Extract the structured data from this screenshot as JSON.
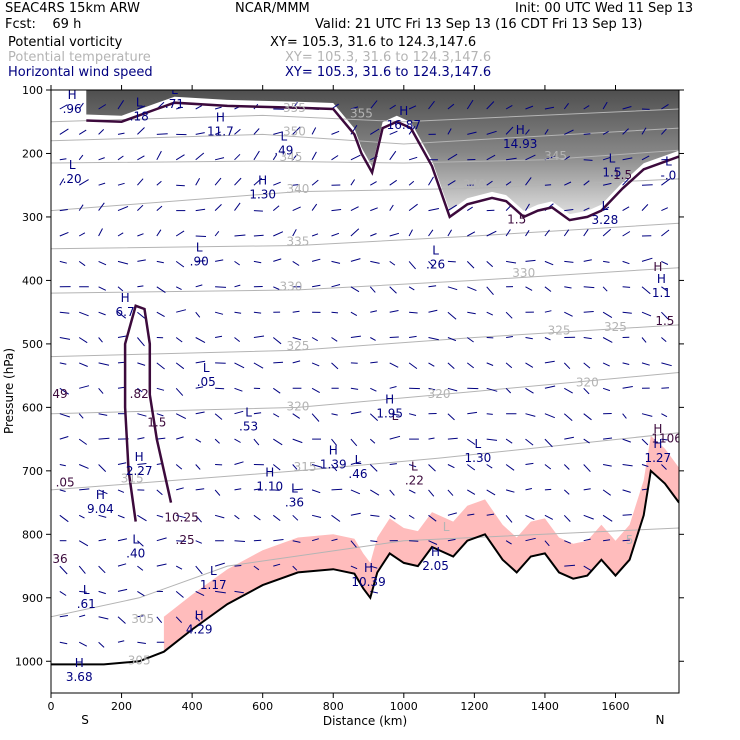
{
  "header": {
    "model": "SEAC4RS 15km ARW",
    "center": "NCAR/MMM",
    "init": "Init: 00 UTC Wed 11 Sep 13",
    "fcst": "Fcst:    69 h",
    "valid": "Valid: 21 UTC Fri 13 Sep 13 (16 CDT Fri 13 Sep 13)",
    "fields": [
      {
        "name": "Potential vorticity",
        "xy": "XY= 105.3, 31.6 to 124.3,147.6",
        "color": "#000000"
      },
      {
        "name": "Potential temperature",
        "xy": "XY= 105.3, 31.6 to 124.3,147.6",
        "color": "#b4b4b4"
      },
      {
        "name": "Horizontal wind speed",
        "xy": "XY= 105.3, 31.6 to 124.3,147.6",
        "color": "#000080"
      }
    ]
  },
  "chart_data": {
    "type": "cross-section",
    "xlabel": "Distance (km)",
    "ylabel": "Pressure (hPa)",
    "xlim": [
      0,
      1780
    ],
    "ylim": [
      1050,
      100
    ],
    "x_ticks": [
      0,
      200,
      400,
      600,
      800,
      1000,
      1200,
      1400,
      1600
    ],
    "y_ticks": [
      100,
      200,
      300,
      400,
      500,
      600,
      700,
      800,
      900,
      1000
    ],
    "endpoint_labels": {
      "left": "S",
      "right": "N"
    },
    "colors": {
      "terrain": "#000000",
      "pv_contour": "#3c0a3c",
      "theta_contour": "#b4b4b4",
      "wind_vectors": "#000080",
      "shading_pink": "#ffbcbc"
    },
    "terrain_surface": [
      {
        "x": 0,
        "p": 1005
      },
      {
        "x": 150,
        "p": 1005
      },
      {
        "x": 250,
        "p": 1000
      },
      {
        "x": 320,
        "p": 985
      },
      {
        "x": 400,
        "p": 950
      },
      {
        "x": 500,
        "p": 910
      },
      {
        "x": 600,
        "p": 880
      },
      {
        "x": 700,
        "p": 860
      },
      {
        "x": 800,
        "p": 855
      },
      {
        "x": 860,
        "p": 862
      },
      {
        "x": 885,
        "p": 885
      },
      {
        "x": 905,
        "p": 900
      },
      {
        "x": 925,
        "p": 860
      },
      {
        "x": 960,
        "p": 830
      },
      {
        "x": 1000,
        "p": 845
      },
      {
        "x": 1040,
        "p": 850
      },
      {
        "x": 1080,
        "p": 820
      },
      {
        "x": 1140,
        "p": 835
      },
      {
        "x": 1180,
        "p": 810
      },
      {
        "x": 1230,
        "p": 800
      },
      {
        "x": 1280,
        "p": 840
      },
      {
        "x": 1320,
        "p": 860
      },
      {
        "x": 1360,
        "p": 835
      },
      {
        "x": 1400,
        "p": 830
      },
      {
        "x": 1440,
        "p": 860
      },
      {
        "x": 1480,
        "p": 870
      },
      {
        "x": 1520,
        "p": 865
      },
      {
        "x": 1560,
        "p": 840
      },
      {
        "x": 1600,
        "p": 865
      },
      {
        "x": 1640,
        "p": 840
      },
      {
        "x": 1680,
        "p": 770
      },
      {
        "x": 1700,
        "p": 700
      },
      {
        "x": 1740,
        "p": 720
      },
      {
        "x": 1780,
        "p": 750
      }
    ],
    "pv_contour_upper": [
      {
        "x": 100,
        "p": 148
      },
      {
        "x": 200,
        "p": 150
      },
      {
        "x": 300,
        "p": 130
      },
      {
        "x": 350,
        "p": 120
      },
      {
        "x": 500,
        "p": 125
      },
      {
        "x": 700,
        "p": 128
      },
      {
        "x": 800,
        "p": 130
      },
      {
        "x": 860,
        "p": 170
      },
      {
        "x": 880,
        "p": 200
      },
      {
        "x": 910,
        "p": 230
      },
      {
        "x": 940,
        "p": 160
      },
      {
        "x": 980,
        "p": 150
      },
      {
        "x": 1020,
        "p": 160
      },
      {
        "x": 1080,
        "p": 220
      },
      {
        "x": 1130,
        "p": 300
      },
      {
        "x": 1180,
        "p": 280
      },
      {
        "x": 1250,
        "p": 270
      },
      {
        "x": 1290,
        "p": 275
      },
      {
        "x": 1340,
        "p": 300
      },
      {
        "x": 1380,
        "p": 290
      },
      {
        "x": 1420,
        "p": 285
      },
      {
        "x": 1470,
        "p": 305
      },
      {
        "x": 1520,
        "p": 300
      },
      {
        "x": 1560,
        "p": 290
      },
      {
        "x": 1620,
        "p": 255
      },
      {
        "x": 1680,
        "p": 225
      },
      {
        "x": 1780,
        "p": 205
      }
    ],
    "pv_contour_column": [
      {
        "x": 240,
        "p": 780
      },
      {
        "x": 220,
        "p": 700
      },
      {
        "x": 210,
        "p": 600
      },
      {
        "x": 210,
        "p": 500
      },
      {
        "x": 240,
        "p": 440
      },
      {
        "x": 265,
        "p": 445
      },
      {
        "x": 280,
        "p": 500
      },
      {
        "x": 280,
        "p": 580
      },
      {
        "x": 300,
        "p": 650
      },
      {
        "x": 320,
        "p": 700
      },
      {
        "x": 340,
        "p": 750
      }
    ],
    "theta_contours": [
      {
        "label": "355",
        "points": [
          {
            "x": 0,
            "p": 150
          },
          {
            "x": 600,
            "p": 140
          },
          {
            "x": 1000,
            "p": 150
          },
          {
            "x": 1780,
            "p": 130
          }
        ]
      },
      {
        "label": "350",
        "points": [
          {
            "x": 0,
            "p": 180
          },
          {
            "x": 600,
            "p": 170
          },
          {
            "x": 1000,
            "p": 185
          },
          {
            "x": 1780,
            "p": 160
          }
        ]
      },
      {
        "label": "345",
        "points": [
          {
            "x": 0,
            "p": 215
          },
          {
            "x": 600,
            "p": 212
          },
          {
            "x": 1000,
            "p": 215
          },
          {
            "x": 1400,
            "p": 210
          },
          {
            "x": 1780,
            "p": 195
          }
        ]
      },
      {
        "label": "340",
        "points": [
          {
            "x": 0,
            "p": 290
          },
          {
            "x": 700,
            "p": 260
          },
          {
            "x": 1200,
            "p": 255
          },
          {
            "x": 1780,
            "p": 240
          }
        ]
      },
      {
        "label": "335",
        "points": [
          {
            "x": 0,
            "p": 350
          },
          {
            "x": 700,
            "p": 345
          },
          {
            "x": 1200,
            "p": 330
          },
          {
            "x": 1780,
            "p": 310
          }
        ]
      },
      {
        "label": "330",
        "points": [
          {
            "x": 0,
            "p": 420
          },
          {
            "x": 700,
            "p": 415
          },
          {
            "x": 1200,
            "p": 400
          },
          {
            "x": 1780,
            "p": 380
          }
        ]
      },
      {
        "label": "325",
        "points": [
          {
            "x": 0,
            "p": 520
          },
          {
            "x": 700,
            "p": 510
          },
          {
            "x": 1200,
            "p": 490
          },
          {
            "x": 1780,
            "p": 470
          }
        ]
      },
      {
        "label": "320",
        "points": [
          {
            "x": 0,
            "p": 610
          },
          {
            "x": 700,
            "p": 600
          },
          {
            "x": 1200,
            "p": 575
          },
          {
            "x": 1780,
            "p": 545
          }
        ]
      },
      {
        "label": "315",
        "points": [
          {
            "x": 0,
            "p": 730
          },
          {
            "x": 700,
            "p": 700
          },
          {
            "x": 1100,
            "p": 680
          },
          {
            "x": 1780,
            "p": 640
          }
        ]
      },
      {
        "label": "305",
        "points": [
          {
            "x": 0,
            "p": 930
          },
          {
            "x": 250,
            "p": 900
          },
          {
            "x": 500,
            "p": 850
          },
          {
            "x": 1000,
            "p": 810
          },
          {
            "x": 1780,
            "p": 790
          }
        ]
      }
    ],
    "theta_labels": [
      {
        "text": "355",
        "x": 690,
        "p": 135
      },
      {
        "text": "355",
        "x": 880,
        "p": 143
      },
      {
        "text": "350",
        "x": 690,
        "p": 172
      },
      {
        "text": "345",
        "x": 680,
        "p": 212
      },
      {
        "text": "345",
        "x": 1430,
        "p": 210
      },
      {
        "text": "340",
        "x": 700,
        "p": 262
      },
      {
        "text": "340",
        "x": 1200,
        "p": 255
      },
      {
        "text": "335",
        "x": 700,
        "p": 345
      },
      {
        "text": "330",
        "x": 680,
        "p": 416
      },
      {
        "text": "330",
        "x": 1340,
        "p": 395
      },
      {
        "text": "325",
        "x": 700,
        "p": 510
      },
      {
        "text": "325",
        "x": 1440,
        "p": 485
      },
      {
        "text": "325",
        "x": 1600,
        "p": 480
      },
      {
        "text": "320",
        "x": 1100,
        "p": 585
      },
      {
        "text": "320",
        "x": 1520,
        "p": 567
      },
      {
        "text": "320",
        "x": 700,
        "p": 605
      },
      {
        "text": "315",
        "x": 720,
        "p": 700
      },
      {
        "text": "315",
        "x": 230,
        "p": 718
      },
      {
        "text": "305",
        "x": 260,
        "p": 940
      },
      {
        "text": "305",
        "x": 250,
        "p": 1005
      },
      {
        "text": "L",
        "x": 1120,
        "p": 795
      },
      {
        "text": "5",
        "x": 1640,
        "p": 815
      }
    ],
    "extremum_labels": [
      {
        "letter": "H",
        "value": ".96",
        "x": 60,
        "p": 130,
        "color": "#000080"
      },
      {
        "letter": "L",
        "value": ".18",
        "x": 250,
        "p": 142,
        "color": "#000080"
      },
      {
        "letter": "L",
        "value": ".71",
        "x": 350,
        "p": 122,
        "color": "#000080"
      },
      {
        "letter": "H",
        "value": "11.7",
        "x": 480,
        "p": 165,
        "color": "#000080"
      },
      {
        "letter": "L",
        "value": ".49",
        "x": 660,
        "p": 195,
        "color": "#000080"
      },
      {
        "letter": "H",
        "value": "16.87",
        "x": 1000,
        "p": 155,
        "color": "#000080"
      },
      {
        "letter": "H",
        "value": "14.93",
        "x": 1330,
        "p": 185,
        "color": "#000080"
      },
      {
        "letter": "L",
        "value": ".20",
        "x": 60,
        "p": 240,
        "color": "#000080"
      },
      {
        "letter": "H",
        "value": "1.30",
        "x": 600,
        "p": 265,
        "color": "#000080"
      },
      {
        "letter": "L",
        "value": "1.5",
        "x": 1590,
        "p": 230,
        "color": "#000080"
      },
      {
        "letter": "L",
        "value": "-.0",
        "x": 1750,
        "p": 235,
        "color": "#000080"
      },
      {
        "letter": "L",
        "value": "3.28",
        "x": 1570,
        "p": 305,
        "color": "#000080"
      },
      {
        "letter": "L",
        "value": ".90",
        "x": 420,
        "p": 370,
        "color": "#000080"
      },
      {
        "letter": "L",
        "value": ".26",
        "x": 1090,
        "p": 375,
        "color": "#000080"
      },
      {
        "letter": "H",
        "value": "6.7",
        "x": 210,
        "p": 450,
        "color": "#000080"
      },
      {
        "letter": "H",
        "value": "1.1",
        "x": 1730,
        "p": 420,
        "color": "#000080"
      },
      {
        "letter": "L",
        "value": ".05",
        "x": 440,
        "p": 560,
        "color": "#000080"
      },
      {
        "letter": "L",
        "value": ".53",
        "x": 560,
        "p": 630,
        "color": "#000080"
      },
      {
        "letter": "H",
        "value": "1.95",
        "x": 960,
        "p": 610,
        "color": "#000080"
      },
      {
        "letter": "L",
        "value": ".46",
        "x": 870,
        "p": 705,
        "color": "#000080"
      },
      {
        "letter": "H",
        "value": "1.39",
        "x": 800,
        "p": 690,
        "color": "#000080"
      },
      {
        "letter": "L",
        "value": "1.30",
        "x": 1210,
        "p": 680,
        "color": "#000080"
      },
      {
        "letter": "H",
        "value": "1.10",
        "x": 620,
        "p": 725,
        "color": "#000080"
      },
      {
        "letter": "L",
        "value": ".36",
        "x": 690,
        "p": 750,
        "color": "#000080"
      },
      {
        "letter": "H",
        "value": "9.04",
        "x": 140,
        "p": 760,
        "color": "#000080"
      },
      {
        "letter": "H",
        "value": "2.27",
        "x": 250,
        "p": 700,
        "color": "#000080"
      },
      {
        "letter": "L",
        "value": ".40",
        "x": 240,
        "p": 830,
        "color": "#000080"
      },
      {
        "letter": "H",
        "value": "10.39",
        "x": 900,
        "p": 875,
        "color": "#000080"
      },
      {
        "letter": "H",
        "value": "2.05",
        "x": 1090,
        "p": 850,
        "color": "#000080"
      },
      {
        "letter": "L",
        "value": "1.17",
        "x": 460,
        "p": 880,
        "color": "#000080"
      },
      {
        "letter": "L",
        "value": ".61",
        "x": 100,
        "p": 910,
        "color": "#000080"
      },
      {
        "letter": "H",
        "value": "4.29",
        "x": 420,
        "p": 950,
        "color": "#000080"
      },
      {
        "letter": "H",
        "value": "3.68",
        "x": 80,
        "p": 1025,
        "color": "#000080"
      },
      {
        "letter": "H",
        "value": "1.27",
        "x": 1720,
        "p": 680,
        "color": "#000080"
      },
      {
        "letter": "L",
        "value": ".22",
        "x": 1030,
        "p": 715,
        "color": "#3c0a3c"
      }
    ],
    "pv_labels": [
      {
        "text": "1.5",
        "x": 1620,
        "p": 240
      },
      {
        "text": "1.5",
        "x": 1320,
        "p": 310
      },
      {
        "text": "1.5",
        "x": 1740,
        "p": 470
      },
      {
        "text": "1.5",
        "x": 300,
        "p": 630
      },
      {
        "text": ".82",
        "x": 250,
        "p": 585
      },
      {
        "text": ".49",
        "x": 20,
        "p": 585
      },
      {
        "text": ".05",
        "x": 40,
        "p": 725
      },
      {
        "text": "10.25",
        "x": 370,
        "p": 780
      },
      {
        "text": ".25",
        "x": 380,
        "p": 815
      },
      {
        "text": ".36",
        "x": 20,
        "p": 845
      },
      {
        "text": "L",
        "x": 975,
        "p": 620
      },
      {
        "text": "H",
        "x": 1720,
        "p": 640
      },
      {
        "text": "H",
        "x": 1720,
        "p": 385
      },
      {
        "text": "1106",
        "x": 1745,
        "p": 655
      }
    ]
  }
}
